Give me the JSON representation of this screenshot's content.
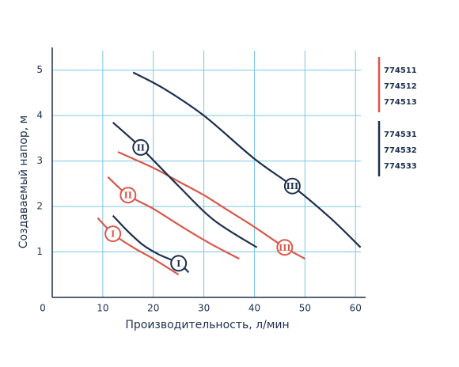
{
  "chart_data": {
    "type": "line",
    "x_label": "Производительность, л/мин",
    "y_label": "Создаваемый напор, м",
    "xlim": [
      0,
      62
    ],
    "ylim": [
      0,
      5.5
    ],
    "xticks": [
      0,
      10,
      20,
      30,
      40,
      50,
      60
    ],
    "yticks": [
      1,
      2,
      3,
      4,
      5
    ],
    "grid": true,
    "legend": "right",
    "series": [
      {
        "name": "774511",
        "color": "#d9574a",
        "marker": "I",
        "x": [
          9,
          12,
          16,
          20,
          25
        ],
        "values": [
          1.75,
          1.4,
          1.1,
          0.85,
          0.5
        ]
      },
      {
        "name": "774512",
        "color": "#d9574a",
        "marker": "II",
        "x": [
          11,
          15,
          20,
          25,
          31,
          37
        ],
        "values": [
          2.65,
          2.25,
          1.95,
          1.6,
          1.2,
          0.85
        ]
      },
      {
        "name": "774513",
        "color": "#d9574a",
        "marker": "III",
        "x": [
          13,
          20,
          25,
          30,
          35,
          40,
          46,
          50
        ],
        "values": [
          3.2,
          2.85,
          2.55,
          2.25,
          1.9,
          1.55,
          1.1,
          0.85
        ]
      },
      {
        "name": "774531",
        "color": "#1d2f4f",
        "marker": "I",
        "x": [
          12,
          15,
          18,
          21,
          25,
          27
        ],
        "values": [
          1.8,
          1.45,
          1.15,
          0.95,
          0.75,
          0.55
        ]
      },
      {
        "name": "774532",
        "color": "#1d2f4f",
        "marker": "II",
        "x": [
          12,
          17.5,
          25,
          32,
          40.5
        ],
        "values": [
          3.85,
          3.3,
          2.45,
          1.7,
          1.1
        ]
      },
      {
        "name": "774533",
        "color": "#1d2f4f",
        "marker": "III",
        "x": [
          16,
          22,
          30,
          40,
          47.5,
          55,
          61
        ],
        "values": [
          4.95,
          4.6,
          4.0,
          3.05,
          2.45,
          1.75,
          1.1
        ]
      }
    ]
  }
}
